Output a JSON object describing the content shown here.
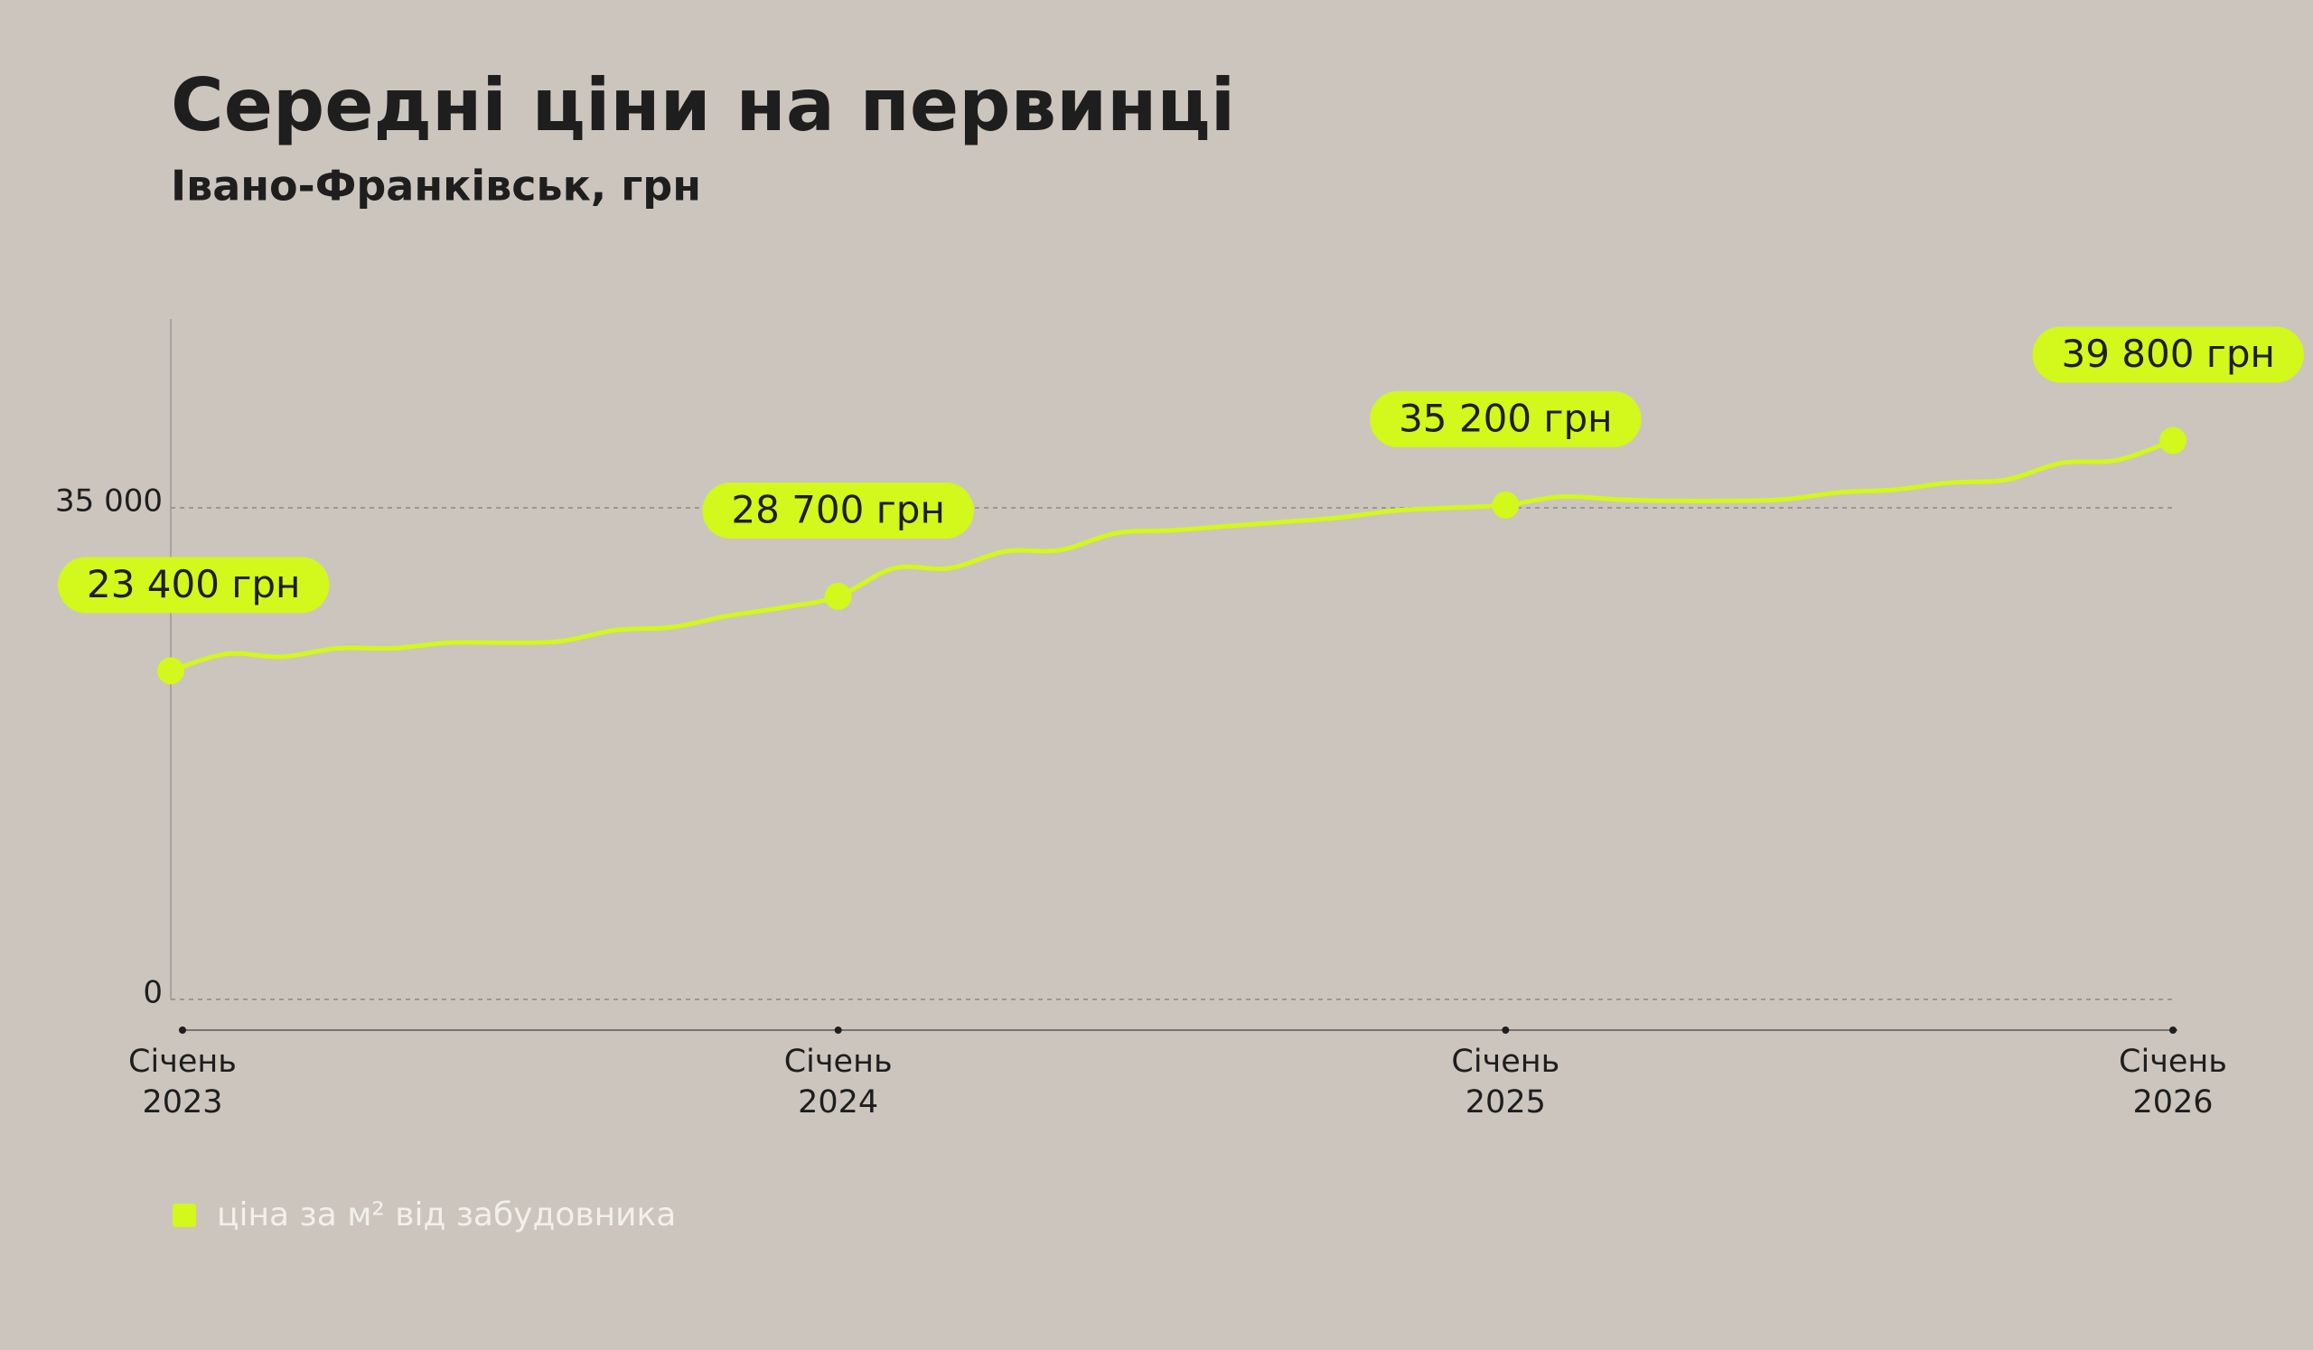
{
  "chart_data": {
    "type": "line",
    "title": "Середні ціни на первинці",
    "subtitle": "Івано-Франківськ, грн",
    "categories": [
      "Січень 2023",
      null,
      null,
      null,
      null,
      null,
      null,
      null,
      null,
      null,
      null,
      null,
      "Січень 2024",
      null,
      null,
      null,
      null,
      null,
      null,
      null,
      null,
      null,
      null,
      null,
      "Січень 2025",
      null,
      null,
      null,
      null,
      null,
      null,
      null,
      null,
      null,
      null,
      null,
      "Січень 2026"
    ],
    "series": [
      {
        "name": "ціна за м² від забудовника",
        "color": "#d2f81c",
        "values": [
          23400,
          24600,
          24400,
          25000,
          25000,
          25400,
          25400,
          25500,
          26300,
          26500,
          27300,
          27900,
          28700,
          30700,
          30700,
          31900,
          32000,
          33200,
          33400,
          33700,
          34000,
          34300,
          34800,
          35000,
          35200,
          35800,
          35600,
          35500,
          35500,
          35600,
          36100,
          36300,
          36800,
          37000,
          38200,
          38400,
          39800
        ],
        "value_labels": [
          "23 400 грн",
          null,
          null,
          null,
          null,
          null,
          null,
          null,
          null,
          null,
          null,
          null,
          "28 700 грн",
          null,
          null,
          null,
          null,
          null,
          null,
          null,
          null,
          null,
          null,
          null,
          "35 200 грн",
          null,
          null,
          null,
          null,
          null,
          null,
          null,
          null,
          null,
          null,
          null,
          "39 800 грн"
        ]
      }
    ],
    "ylim": [
      0,
      48000
    ],
    "yticks": [
      0,
      {
        "value": 35000,
        "label": "35 000"
      }
    ],
    "grid": true
  }
}
